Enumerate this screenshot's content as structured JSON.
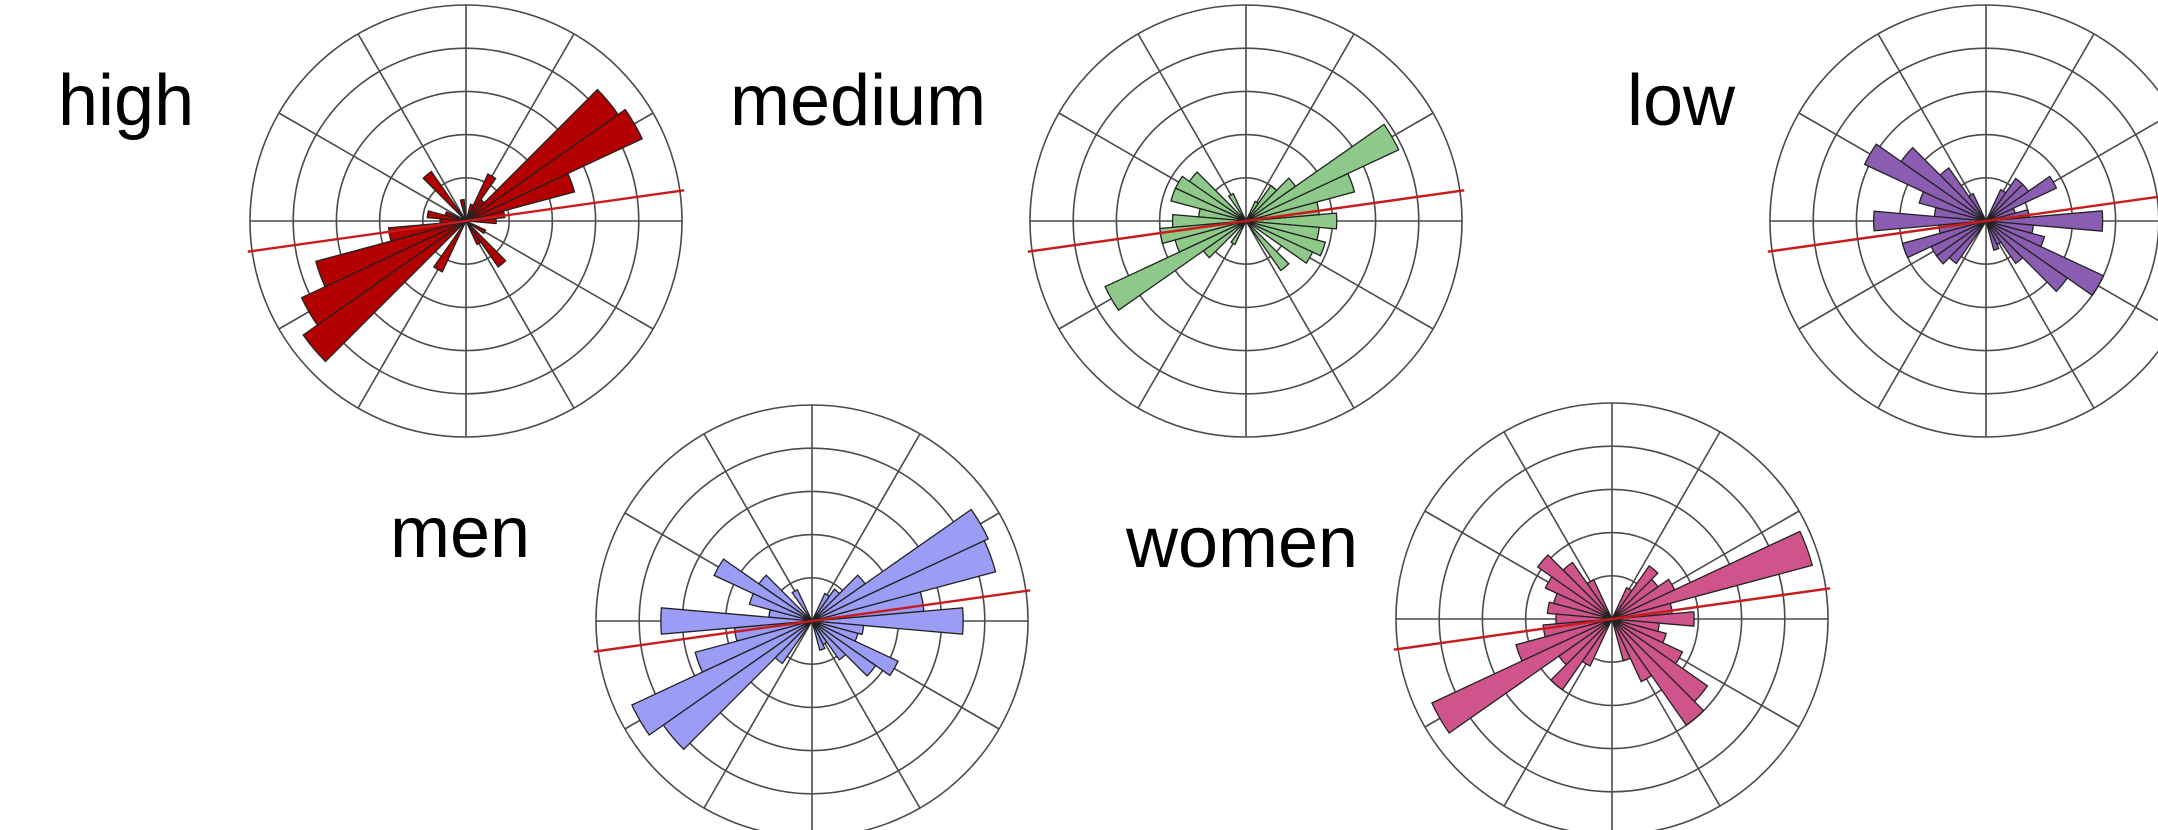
{
  "chart_data": [
    {
      "type": "rose",
      "label": "high",
      "color": "#b30000",
      "rings": 5,
      "spokes_deg": 30,
      "trend_angle_deg": 8,
      "petals": [
        {
          "angle": 0,
          "value": 0.7
        },
        {
          "angle": 10,
          "value": 0.9
        },
        {
          "angle": 20,
          "value": 2.6
        },
        {
          "angle": 30,
          "value": 4.5
        },
        {
          "angle": 40,
          "value": 4.3
        },
        {
          "angle": 50,
          "value": 0.6
        },
        {
          "angle": 60,
          "value": 1.2
        },
        {
          "angle": 70,
          "value": 0.4
        },
        {
          "angle": 100,
          "value": 0.5
        },
        {
          "angle": 130,
          "value": 1.4
        },
        {
          "angle": 160,
          "value": 0.5
        },
        {
          "angle": 170,
          "value": 0.9
        },
        {
          "angle": 180,
          "value": 0.6
        },
        {
          "angle": 190,
          "value": 1.8
        },
        {
          "angle": 200,
          "value": 3.6
        },
        {
          "angle": 210,
          "value": 4.2
        },
        {
          "angle": 220,
          "value": 4.6
        },
        {
          "angle": 240,
          "value": 1.3
        },
        {
          "angle": 300,
          "value": 0.6
        },
        {
          "angle": 310,
          "value": 1.3
        },
        {
          "angle": 330,
          "value": 0.5
        }
      ]
    },
    {
      "type": "rose",
      "label": "medium",
      "color": "#8fc98a",
      "rings": 5,
      "spokes_deg": 30,
      "trend_angle_deg": 8,
      "petals": [
        {
          "angle": 0,
          "value": 2.1
        },
        {
          "angle": 10,
          "value": 1.7
        },
        {
          "angle": 20,
          "value": 2.6
        },
        {
          "angle": 30,
          "value": 3.9
        },
        {
          "angle": 40,
          "value": 1.4
        },
        {
          "angle": 50,
          "value": 1.0
        },
        {
          "angle": 60,
          "value": 0.5
        },
        {
          "angle": 120,
          "value": 0.7
        },
        {
          "angle": 140,
          "value": 1.6
        },
        {
          "angle": 150,
          "value": 1.8
        },
        {
          "angle": 160,
          "value": 1.8
        },
        {
          "angle": 170,
          "value": 1.1
        },
        {
          "angle": 180,
          "value": 1.7
        },
        {
          "angle": 190,
          "value": 2.0
        },
        {
          "angle": 200,
          "value": 1.7
        },
        {
          "angle": 210,
          "value": 3.6
        },
        {
          "angle": 220,
          "value": 1.2
        },
        {
          "angle": 240,
          "value": 0.6
        },
        {
          "angle": 310,
          "value": 1.4
        },
        {
          "angle": 330,
          "value": 1.7
        },
        {
          "angle": 340,
          "value": 1.9
        },
        {
          "angle": 350,
          "value": 1.7
        }
      ]
    },
    {
      "type": "rose",
      "label": "low",
      "color": "#8a5cb2",
      "rings": 5,
      "spokes_deg": 30,
      "trend_angle_deg": 8,
      "petals": [
        {
          "angle": 0,
          "value": 2.7
        },
        {
          "angle": 10,
          "value": 1.0
        },
        {
          "angle": 20,
          "value": 0.7
        },
        {
          "angle": 30,
          "value": 1.8
        },
        {
          "angle": 40,
          "value": 1.2
        },
        {
          "angle": 50,
          "value": 1.2
        },
        {
          "angle": 60,
          "value": 0.8
        },
        {
          "angle": 120,
          "value": 0.7
        },
        {
          "angle": 130,
          "value": 1.5
        },
        {
          "angle": 140,
          "value": 2.4
        },
        {
          "angle": 150,
          "value": 3.1
        },
        {
          "angle": 160,
          "value": 1.6
        },
        {
          "angle": 170,
          "value": 1.2
        },
        {
          "angle": 180,
          "value": 2.6
        },
        {
          "angle": 190,
          "value": 1.1
        },
        {
          "angle": 200,
          "value": 2.0
        },
        {
          "angle": 210,
          "value": 1.4
        },
        {
          "angle": 220,
          "value": 1.4
        },
        {
          "angle": 230,
          "value": 1.2
        },
        {
          "angle": 290,
          "value": 0.7
        },
        {
          "angle": 300,
          "value": 0.6
        },
        {
          "angle": 310,
          "value": 1.2
        },
        {
          "angle": 320,
          "value": 2.3
        },
        {
          "angle": 330,
          "value": 3.0
        },
        {
          "angle": 340,
          "value": 1.4
        },
        {
          "angle": 350,
          "value": 1.1
        }
      ]
    },
    {
      "type": "rose",
      "label": "men",
      "color": "#9a9cf5",
      "rings": 5,
      "spokes_deg": 30,
      "trend_angle_deg": 8,
      "petals": [
        {
          "angle": 0,
          "value": 3.5
        },
        {
          "angle": 10,
          "value": 2.6
        },
        {
          "angle": 20,
          "value": 4.4
        },
        {
          "angle": 30,
          "value": 4.5
        },
        {
          "angle": 40,
          "value": 1.5
        },
        {
          "angle": 50,
          "value": 0.9
        },
        {
          "angle": 60,
          "value": 0.7
        },
        {
          "angle": 120,
          "value": 0.8
        },
        {
          "angle": 140,
          "value": 1.5
        },
        {
          "angle": 150,
          "value": 2.5
        },
        {
          "angle": 160,
          "value": 1.5
        },
        {
          "angle": 170,
          "value": 1.0
        },
        {
          "angle": 180,
          "value": 3.5
        },
        {
          "angle": 190,
          "value": 1.8
        },
        {
          "angle": 200,
          "value": 2.8
        },
        {
          "angle": 210,
          "value": 4.6
        },
        {
          "angle": 220,
          "value": 4.2
        },
        {
          "angle": 230,
          "value": 1.2
        },
        {
          "angle": 290,
          "value": 0.7
        },
        {
          "angle": 300,
          "value": 0.6
        },
        {
          "angle": 310,
          "value": 1.1
        },
        {
          "angle": 320,
          "value": 1.8
        },
        {
          "angle": 330,
          "value": 2.2
        },
        {
          "angle": 340,
          "value": 1.1
        },
        {
          "angle": 350,
          "value": 1.2
        }
      ]
    },
    {
      "type": "rose",
      "label": "women",
      "color": "#d0548c",
      "rings": 5,
      "spokes_deg": 30,
      "trend_angle_deg": 8,
      "petals": [
        {
          "angle": 0,
          "value": 1.9
        },
        {
          "angle": 10,
          "value": 1.4
        },
        {
          "angle": 20,
          "value": 4.8
        },
        {
          "angle": 30,
          "value": 1.6
        },
        {
          "angle": 40,
          "value": 1.3
        },
        {
          "angle": 50,
          "value": 1.5
        },
        {
          "angle": 60,
          "value": 0.8
        },
        {
          "angle": 120,
          "value": 1.0
        },
        {
          "angle": 130,
          "value": 1.6
        },
        {
          "angle": 140,
          "value": 2.1
        },
        {
          "angle": 150,
          "value": 1.7
        },
        {
          "angle": 160,
          "value": 1.4
        },
        {
          "angle": 170,
          "value": 1.5
        },
        {
          "angle": 180,
          "value": 1.3
        },
        {
          "angle": 190,
          "value": 1.6
        },
        {
          "angle": 200,
          "value": 2.3
        },
        {
          "angle": 210,
          "value": 4.6
        },
        {
          "angle": 220,
          "value": 1.5
        },
        {
          "angle": 230,
          "value": 2.0
        },
        {
          "angle": 240,
          "value": 1.2
        },
        {
          "angle": 290,
          "value": 1.0
        },
        {
          "angle": 300,
          "value": 1.6
        },
        {
          "angle": 310,
          "value": 3.0
        },
        {
          "angle": 320,
          "value": 2.7
        },
        {
          "angle": 330,
          "value": 1.8
        },
        {
          "angle": 340,
          "value": 1.3
        },
        {
          "angle": 350,
          "value": 1.1
        }
      ]
    }
  ]
}
